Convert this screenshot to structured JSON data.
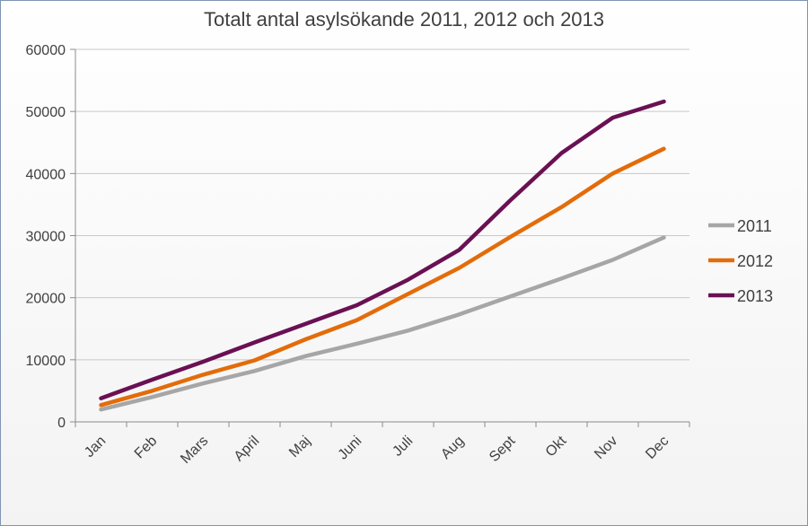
{
  "chart_data": {
    "type": "line",
    "title": "Totalt antal asylsökande 2011, 2012 och 2013",
    "xlabel": "",
    "ylabel": "",
    "categories": [
      "Jan",
      "Feb",
      "Mars",
      "April",
      "Maj",
      "Juni",
      "Juli",
      "Aug",
      "Sept",
      "Okt",
      "Nov",
      "Dec"
    ],
    "ylim": [
      0,
      60000
    ],
    "yticks": [
      0,
      10000,
      20000,
      30000,
      40000,
      50000,
      60000
    ],
    "grid": true,
    "legend_position": "right",
    "series": [
      {
        "name": "2011",
        "color": "#a6a6a6",
        "values": [
          2000,
          4000,
          6200,
          8200,
          10600,
          12600,
          14700,
          17300,
          20200,
          23100,
          26100,
          29700
        ]
      },
      {
        "name": "2012",
        "color": "#e36c0a",
        "values": [
          2700,
          5000,
          7600,
          9900,
          13300,
          16400,
          20600,
          24800,
          29800,
          34600,
          40000,
          44000
        ]
      },
      {
        "name": "2013",
        "color": "#6a1053",
        "values": [
          3800,
          6800,
          9700,
          12800,
          15800,
          18800,
          22900,
          27700,
          35700,
          43300,
          49000,
          51600
        ]
      }
    ]
  }
}
